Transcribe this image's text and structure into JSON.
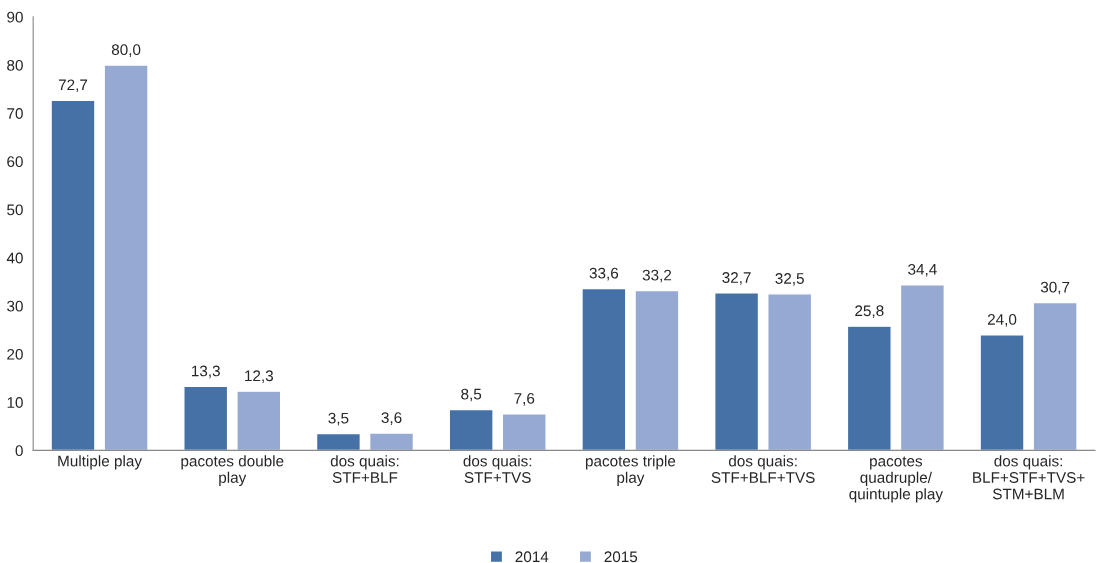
{
  "chart_data": {
    "type": "bar",
    "categories": [
      "Multiple play",
      "pacotes double\nplay",
      "dos quais:\nSTF+BLF",
      "dos quais:\nSTF+TVS",
      "pacotes triple\nplay",
      "dos quais:\nSTF+BLF+TVS",
      "pacotes\nquadruple/\nquintuple play",
      "dos quais:\nBLF+STF+TVS+\nSTM+BLM"
    ],
    "series": [
      {
        "name": "2014",
        "color": "#4571a6",
        "values": [
          72.7,
          13.3,
          3.5,
          8.5,
          33.6,
          32.7,
          25.8,
          24.0
        ],
        "value_labels": [
          "72,7",
          "13,3",
          "3,5",
          "8,5",
          "33,6",
          "32,7",
          "25,8",
          "24,0"
        ]
      },
      {
        "name": "2015",
        "color": "#95a9d2",
        "values": [
          80.0,
          12.3,
          3.6,
          7.6,
          33.2,
          32.5,
          34.4,
          30.7
        ],
        "value_labels": [
          "80,0",
          "12,3",
          "3,6",
          "7,6",
          "33,2",
          "32,5",
          "34,4",
          "30,7"
        ]
      }
    ],
    "ylim": [
      0,
      90
    ],
    "yticks": [
      0,
      10,
      20,
      30,
      40,
      50,
      60,
      70,
      80,
      90
    ],
    "grid": false,
    "legend": "bottom"
  }
}
